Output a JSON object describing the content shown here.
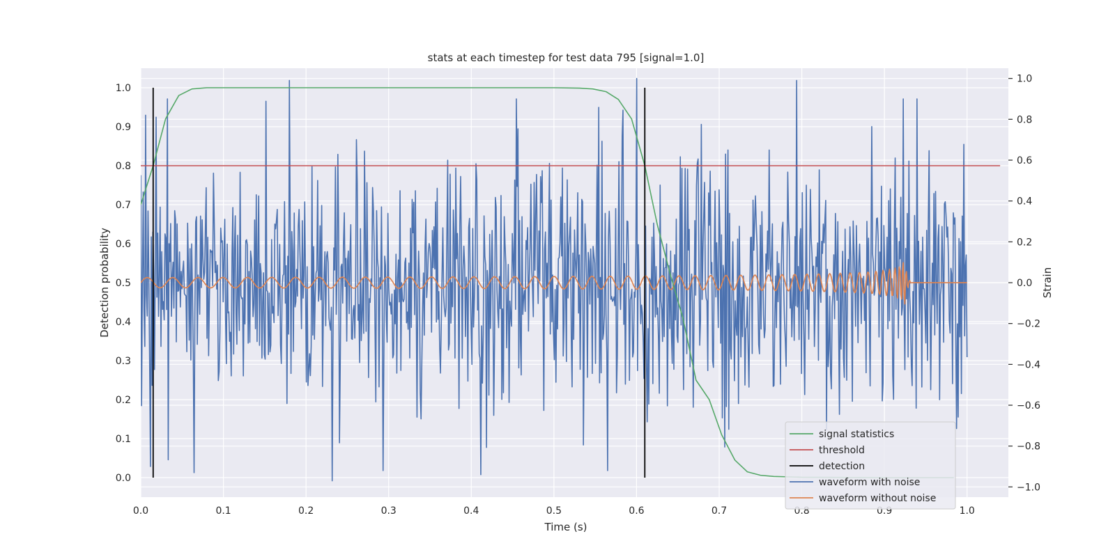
{
  "chart_data": {
    "type": "line",
    "title": "stats at each timestep for test data 795 [signal=1.0]",
    "xlabel": "Time (s)",
    "ylabel_left": "Detection probability",
    "ylabel_right": "Strain",
    "xlim": [
      0.0,
      1.05
    ],
    "ylim_left": [
      -0.05,
      1.05
    ],
    "ylim_right": [
      -1.05,
      1.05
    ],
    "x_ticks": [
      0.0,
      0.1,
      0.2,
      0.3,
      0.4,
      0.5,
      0.6,
      0.7,
      0.8,
      0.9,
      1.0
    ],
    "x_tick_labels": [
      "0.0",
      "0.1",
      "0.2",
      "0.3",
      "0.4",
      "0.5",
      "0.6",
      "0.7",
      "0.8",
      "0.9",
      "1.0"
    ],
    "y_left_ticks": [
      0.0,
      0.1,
      0.2,
      0.3,
      0.4,
      0.5,
      0.6,
      0.7,
      0.8,
      0.9,
      1.0
    ],
    "y_left_tick_labels": [
      "0.0",
      "0.1",
      "0.2",
      "0.3",
      "0.4",
      "0.5",
      "0.6",
      "0.7",
      "0.8",
      "0.9",
      "1.0"
    ],
    "y_right_ticks": [
      -1.0,
      -0.8,
      -0.6,
      -0.4,
      -0.2,
      0.0,
      0.2,
      0.4,
      0.6,
      0.8,
      1.0
    ],
    "y_right_tick_labels": [
      "−1.0",
      "−0.8",
      "−0.6",
      "−0.4",
      "−0.2",
      "0.0",
      "0.2",
      "0.4",
      "0.6",
      "0.8",
      "1.0"
    ],
    "grid": true,
    "legend_position": "lower-right",
    "legend": [
      {
        "label": "signal statistics",
        "color": "#55a868"
      },
      {
        "label": "threshold",
        "color": "#c44e52"
      },
      {
        "label": "detection",
        "color": "#000000"
      },
      {
        "label": "waveform with noise",
        "color": "#4c72b0"
      },
      {
        "label": "waveform without noise",
        "color": "#dd8452"
      }
    ],
    "series": [
      {
        "name": "signal statistics",
        "axis": "left",
        "color": "#55a868",
        "x": [
          0.0,
          0.015,
          0.03,
          0.046,
          0.062,
          0.08,
          0.1,
          0.2,
          0.3,
          0.4,
          0.5,
          0.531,
          0.547,
          0.563,
          0.578,
          0.594,
          0.61,
          0.625,
          0.641,
          0.656,
          0.672,
          0.688,
          0.703,
          0.719,
          0.734,
          0.75,
          0.766,
          0.8,
          0.9,
          0.984
        ],
        "y": [
          0.7,
          0.8,
          0.92,
          0.98,
          0.997,
          1.0,
          1.0,
          1.0,
          1.0,
          1.0,
          1.0,
          0.999,
          0.997,
          0.99,
          0.97,
          0.92,
          0.8,
          0.65,
          0.52,
          0.41,
          0.25,
          0.2,
          0.11,
          0.045,
          0.015,
          0.006,
          0.003,
          0.001,
          0.0,
          0.0
        ]
      },
      {
        "name": "threshold",
        "axis": "left",
        "color": "#c44e52",
        "x": [
          0.0,
          1.04
        ],
        "y": [
          0.8,
          0.8
        ]
      },
      {
        "name": "detection",
        "axis": "left",
        "color": "#000000",
        "segments": [
          {
            "x": 0.015,
            "y0": 0.0,
            "y1": 1.0
          },
          {
            "x": 0.61,
            "y0": 0.0,
            "y1": 1.0
          }
        ]
      },
      {
        "name": "waveform with noise",
        "axis": "right",
        "color": "#4c72b0",
        "x_range": [
          0.0,
          1.0
        ],
        "n_points": 1024,
        "noise_std": 0.3,
        "seed": 795,
        "peaks": [
          {
            "x": 0.006,
            "y": 0.82
          },
          {
            "x": 0.032,
            "y": 0.9
          },
          {
            "x": 0.065,
            "y": -0.93
          },
          {
            "x": 0.18,
            "y": 0.99
          },
          {
            "x": 0.232,
            "y": -0.97
          },
          {
            "x": 0.293,
            "y": -0.92
          },
          {
            "x": 0.412,
            "y": -0.94
          },
          {
            "x": 0.565,
            "y": -0.92
          },
          {
            "x": 0.6,
            "y": 1.0
          },
          {
            "x": 0.794,
            "y": 0.99
          },
          {
            "x": 0.83,
            "y": -0.72
          }
        ]
      },
      {
        "name": "waveform without noise",
        "axis": "right",
        "color": "#dd8452",
        "x_range": [
          0.0,
          1.0
        ],
        "n_points": 1024,
        "amplitude_start": 0.025,
        "amplitude_peak": 0.12,
        "frequency_start_hz": 32,
        "frequency_peak_hz": 250,
        "merger_time": 0.925,
        "ringdown_end": 0.932
      }
    ]
  }
}
